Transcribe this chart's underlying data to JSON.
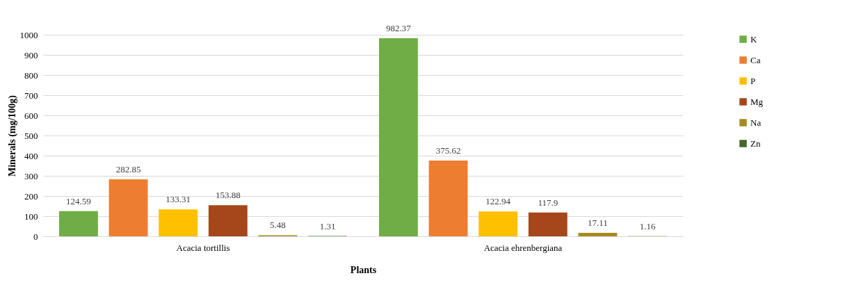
{
  "chart_data": {
    "type": "bar",
    "xlabel": "Plants",
    "ylabel": "Minerals (mg/100g)",
    "categories": [
      "Acacia tortillis",
      "Acacia ehrenbergiana"
    ],
    "series": [
      {
        "name": "K",
        "color": "#70ad47",
        "values": [
          124.59,
          982.37
        ]
      },
      {
        "name": "Ca",
        "color": "#ed7d31",
        "values": [
          282.85,
          375.62
        ]
      },
      {
        "name": "P",
        "color": "#ffc000",
        "values": [
          133.31,
          122.94
        ]
      },
      {
        "name": "Mg",
        "color": "#a5471a",
        "values": [
          153.88,
          117.9
        ]
      },
      {
        "name": "Na",
        "color": "#a68a1e",
        "values": [
          5.48,
          17.11
        ]
      },
      {
        "name": "Zn",
        "color": "#43682b",
        "values": [
          1.31,
          1.16
        ]
      }
    ],
    "ylim": [
      0,
      1000
    ],
    "yticks": [
      0,
      100,
      200,
      300,
      400,
      500,
      600,
      700,
      800,
      900,
      1000
    ],
    "grid": "y",
    "legend": "right",
    "data_labels": true
  }
}
